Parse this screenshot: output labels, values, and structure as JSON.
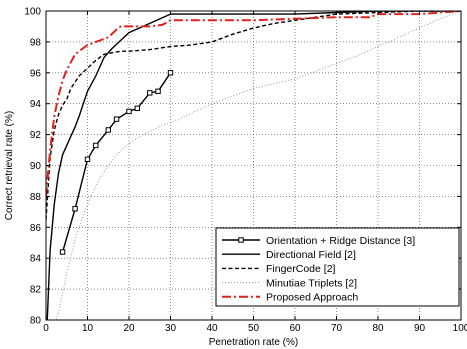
{
  "chart_data": {
    "type": "line",
    "title": "",
    "xlabel": "Penetration rate (%)",
    "ylabel": "Correct retrieval rate (%)",
    "xlim": [
      0,
      100
    ],
    "ylim": [
      80,
      100
    ],
    "xticks": [
      0,
      10,
      20,
      30,
      40,
      50,
      60,
      70,
      80,
      90,
      100
    ],
    "yticks": [
      80,
      82,
      84,
      86,
      88,
      90,
      92,
      94,
      96,
      98,
      100
    ],
    "grid": true,
    "legend_position": "bottom-right",
    "series": [
      {
        "name": "Orientation + Ridge Distance [3]",
        "color": "#000000",
        "dash": "solid",
        "marker": "square",
        "x": [
          4,
          7,
          10,
          12,
          15,
          17,
          20,
          22,
          25,
          27,
          30
        ],
        "y": [
          84.4,
          87.2,
          90.4,
          91.3,
          92.3,
          93.0,
          93.5,
          93.7,
          94.7,
          94.8,
          96.0
        ]
      },
      {
        "name": "Directional Field [2]",
        "color": "#000000",
        "dash": "solid",
        "marker": "none",
        "x": [
          0,
          1,
          2,
          3,
          4,
          5,
          6,
          7,
          8,
          9,
          10,
          12,
          14,
          16,
          18,
          20,
          25,
          30,
          40,
          50,
          60,
          70,
          80,
          90,
          100
        ],
        "y": [
          78,
          84.5,
          87.5,
          89.5,
          90.7,
          91.3,
          91.9,
          92.5,
          93.2,
          94.0,
          94.8,
          95.8,
          97.0,
          97.6,
          98.1,
          98.6,
          99.2,
          99.8,
          99.8,
          99.8,
          99.8,
          99.9,
          100,
          100,
          100
        ]
      },
      {
        "name": "FingerCode [2]",
        "color": "#000000",
        "dash": "dashed",
        "marker": "none",
        "x": [
          0,
          1,
          2,
          3,
          4,
          5,
          6,
          8,
          10,
          12,
          14,
          16,
          18,
          20,
          25,
          30,
          35,
          40,
          45,
          50,
          55,
          60,
          65,
          70,
          80,
          90,
          100
        ],
        "y": [
          86.5,
          90.5,
          92.3,
          93.3,
          93.9,
          94.3,
          95.0,
          95.8,
          96.3,
          96.8,
          97.2,
          97.3,
          97.4,
          97.4,
          97.5,
          97.7,
          97.8,
          98.0,
          98.5,
          98.9,
          99.2,
          99.4,
          99.6,
          99.8,
          99.9,
          100,
          100
        ]
      },
      {
        "name": "Minutiae Triplets [2]",
        "color": "#9a9a9a",
        "dash": "dotted",
        "marker": "none",
        "x": [
          0,
          3,
          5,
          7,
          9,
          11,
          13,
          15,
          17,
          19,
          22,
          25,
          28,
          32,
          36,
          40,
          45,
          50,
          55,
          60,
          65,
          70,
          75,
          80,
          85,
          90,
          95,
          100
        ],
        "y": [
          78,
          80.5,
          83.0,
          85.2,
          86.8,
          88.1,
          89.2,
          90.0,
          90.7,
          91.2,
          91.8,
          92.2,
          92.6,
          93.0,
          93.5,
          94.0,
          94.5,
          95.0,
          95.3,
          95.6,
          96.1,
          96.6,
          97.1,
          97.7,
          98.3,
          98.9,
          99.5,
          100
        ]
      },
      {
        "name": "Proposed Approach",
        "color": "#e0221e",
        "dash": "dashdot",
        "marker": "none",
        "x": [
          0,
          1,
          2,
          3,
          4,
          5,
          7,
          10,
          13,
          15,
          17,
          18,
          20,
          25,
          28,
          30,
          40,
          50,
          60,
          70,
          75,
          78,
          80,
          90,
          100
        ],
        "y": [
          88.0,
          91.0,
          93.2,
          94.5,
          95.5,
          96.2,
          97.2,
          97.8,
          98.1,
          98.3,
          98.8,
          99.0,
          99.0,
          99.0,
          99.1,
          99.4,
          99.4,
          99.4,
          99.5,
          99.6,
          99.6,
          99.6,
          99.8,
          99.8,
          100
        ]
      }
    ]
  }
}
